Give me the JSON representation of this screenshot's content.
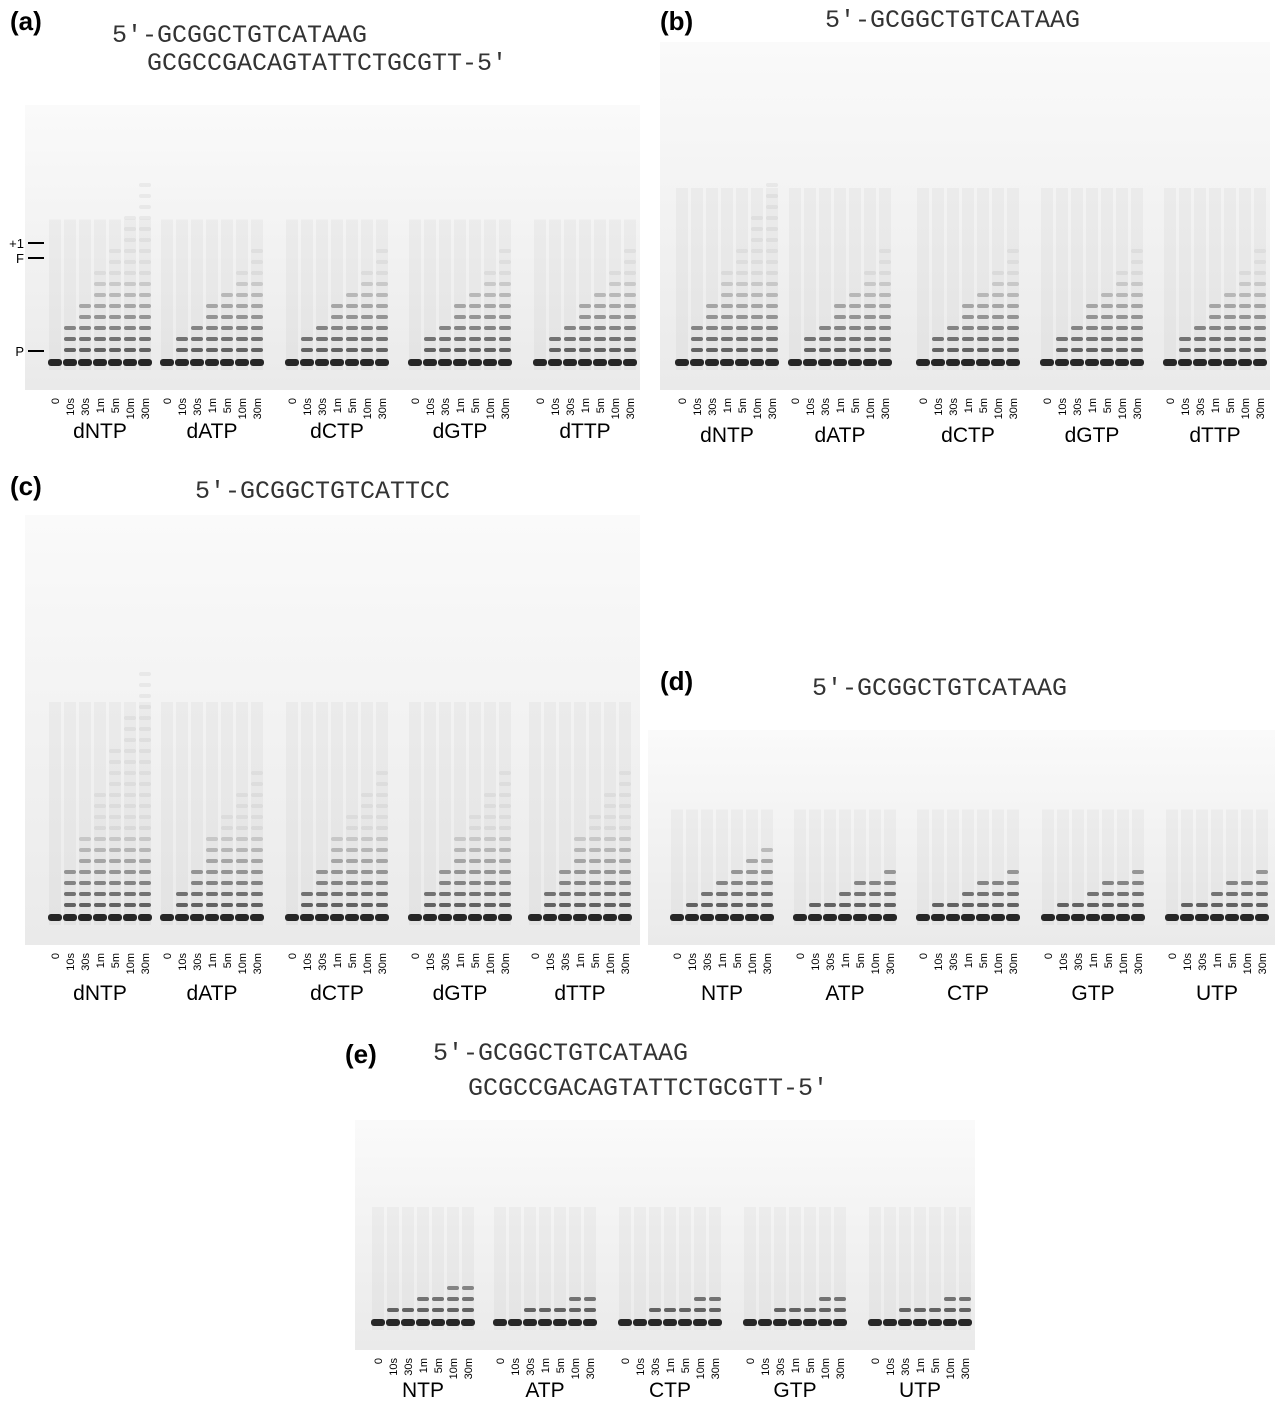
{
  "time_points": [
    "0",
    "10s",
    "30s",
    "1m",
    "5m",
    "10m",
    "30m"
  ],
  "panels": [
    {
      "label": "(a)",
      "sequence": [
        "5′-GCGGCTGTCATAAG",
        "GCGCCGACAGTATTCTGCGTT-5′"
      ],
      "groups": [
        "dNTP",
        "dATP",
        "dCTP",
        "dGTP",
        "dTTP"
      ],
      "markers": [
        "+1",
        "F",
        "P"
      ]
    },
    {
      "label": "(b)",
      "sequence": [
        "5′-GCGGCTGTCATAAG"
      ],
      "groups": [
        "dNTP",
        "dATP",
        "dCTP",
        "dGTP",
        "dTTP"
      ]
    },
    {
      "label": "(c)",
      "sequence": [
        "5′-GCGGCTGTCATTCC"
      ],
      "groups": [
        "dNTP",
        "dATP",
        "dCTP",
        "dGTP",
        "dTTP"
      ]
    },
    {
      "label": "(d)",
      "sequence": [
        "5′-GCGGCTGTCATAAG"
      ],
      "groups": [
        "NTP",
        "ATP",
        "CTP",
        "GTP",
        "UTP"
      ]
    },
    {
      "label": "(e)",
      "sequence": [
        "5′-GCGGCTGTCATAAG",
        "GCGCCGACAGTATTCTGCGTT-5′"
      ],
      "groups": [
        "NTP",
        "ATP",
        "CTP",
        "GTP",
        "UTP"
      ]
    }
  ]
}
